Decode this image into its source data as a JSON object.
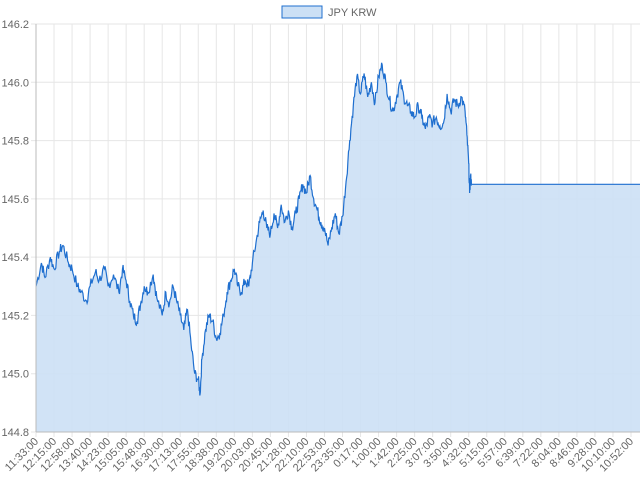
{
  "chart_data": {
    "type": "area",
    "title": "",
    "xlabel": "",
    "ylabel": "",
    "legend_position": "top",
    "grid": true,
    "ylim": [
      144.8,
      146.2
    ],
    "y_ticks": [
      "144.8",
      "145.0",
      "145.2",
      "145.4",
      "145.6",
      "145.8",
      "146.0",
      "146.2"
    ],
    "x_ticks": [
      "11:33:00",
      "12:15:00",
      "12:58:00",
      "13:40:00",
      "14:23:00",
      "15:05:00",
      "15:48:00",
      "16:30:00",
      "17:13:00",
      "17:55:00",
      "18:38:00",
      "19:20:00",
      "20:03:00",
      "20:45:00",
      "21:28:00",
      "22:10:00",
      "22:53:00",
      "23:35:00",
      "0:17:00",
      "1:00:00",
      "1:42:00",
      "2:25:00",
      "3:07:00",
      "3:50:00",
      "4:32:00",
      "5:15:00",
      "5:57:00",
      "6:39:00",
      "7:22:00",
      "8:04:00",
      "8:46:00",
      "9:28:00",
      "10:10:00",
      "10:52:00"
    ],
    "series": [
      {
        "name": "JPY KRW",
        "color": "#1f6fcf",
        "fill": "#cce0f5",
        "points": [
          [
            0,
            145.3
          ],
          [
            0.3,
            145.38
          ],
          [
            0.5,
            145.33
          ],
          [
            0.8,
            145.4
          ],
          [
            1.0,
            145.36
          ],
          [
            1.3,
            145.42
          ],
          [
            1.5,
            145.44
          ],
          [
            1.8,
            145.38
          ],
          [
            2.0,
            145.36
          ],
          [
            2.3,
            145.3
          ],
          [
            2.5,
            145.28
          ],
          [
            2.8,
            145.25
          ],
          [
            3.0,
            145.3
          ],
          [
            3.3,
            145.35
          ],
          [
            3.5,
            145.32
          ],
          [
            3.8,
            145.36
          ],
          [
            4.0,
            145.3
          ],
          [
            4.3,
            145.34
          ],
          [
            4.6,
            145.28
          ],
          [
            4.8,
            145.36
          ],
          [
            5.0,
            145.32
          ],
          [
            5.2,
            145.25
          ],
          [
            5.4,
            145.2
          ],
          [
            5.6,
            145.18
          ],
          [
            5.8,
            145.24
          ],
          [
            6.0,
            145.3
          ],
          [
            6.2,
            145.28
          ],
          [
            6.5,
            145.34
          ],
          [
            6.7,
            145.26
          ],
          [
            7.0,
            145.2
          ],
          [
            7.2,
            145.28
          ],
          [
            7.4,
            145.24
          ],
          [
            7.6,
            145.3
          ],
          [
            7.8,
            145.25
          ],
          [
            8.0,
            145.2
          ],
          [
            8.2,
            145.15
          ],
          [
            8.4,
            145.22
          ],
          [
            8.6,
            145.1
          ],
          [
            8.8,
            145.0
          ],
          [
            9.0,
            144.98
          ],
          [
            9.1,
            144.93
          ],
          [
            9.2,
            145.05
          ],
          [
            9.4,
            145.15
          ],
          [
            9.6,
            145.2
          ],
          [
            9.8,
            145.18
          ],
          [
            10.0,
            145.12
          ],
          [
            10.2,
            145.14
          ],
          [
            10.4,
            145.2
          ],
          [
            10.6,
            145.28
          ],
          [
            10.8,
            145.32
          ],
          [
            11.0,
            145.36
          ],
          [
            11.2,
            145.3
          ],
          [
            11.4,
            145.28
          ],
          [
            11.6,
            145.32
          ],
          [
            11.8,
            145.3
          ],
          [
            12.0,
            145.38
          ],
          [
            12.2,
            145.45
          ],
          [
            12.4,
            145.52
          ],
          [
            12.6,
            145.56
          ],
          [
            12.8,
            145.5
          ],
          [
            13.0,
            145.48
          ],
          [
            13.2,
            145.55
          ],
          [
            13.4,
            145.5
          ],
          [
            13.6,
            145.58
          ],
          [
            13.8,
            145.52
          ],
          [
            14.0,
            145.56
          ],
          [
            14.2,
            145.5
          ],
          [
            14.4,
            145.55
          ],
          [
            14.6,
            145.6
          ],
          [
            14.8,
            145.65
          ],
          [
            15.0,
            145.62
          ],
          [
            15.2,
            145.68
          ],
          [
            15.4,
            145.6
          ],
          [
            15.6,
            145.56
          ],
          [
            15.8,
            145.52
          ],
          [
            16.0,
            145.5
          ],
          [
            16.2,
            145.44
          ],
          [
            16.4,
            145.5
          ],
          [
            16.6,
            145.55
          ],
          [
            16.8,
            145.48
          ],
          [
            17.0,
            145.54
          ],
          [
            17.2,
            145.66
          ],
          [
            17.4,
            145.8
          ],
          [
            17.6,
            145.92
          ],
          [
            17.8,
            146.02
          ],
          [
            18.0,
            145.96
          ],
          [
            18.2,
            146.03
          ],
          [
            18.4,
            145.95
          ],
          [
            18.6,
            146.0
          ],
          [
            18.8,
            145.93
          ],
          [
            19.0,
            146.02
          ],
          [
            19.2,
            146.06
          ],
          [
            19.4,
            146.0
          ],
          [
            19.6,
            145.94
          ],
          [
            19.8,
            145.9
          ],
          [
            20.0,
            145.95
          ],
          [
            20.2,
            146.0
          ],
          [
            20.4,
            145.95
          ],
          [
            20.6,
            145.92
          ],
          [
            20.8,
            145.9
          ],
          [
            21.0,
            145.88
          ],
          [
            21.2,
            145.92
          ],
          [
            21.4,
            145.88
          ],
          [
            21.6,
            145.84
          ],
          [
            21.8,
            145.88
          ],
          [
            22.0,
            145.86
          ],
          [
            22.2,
            145.88
          ],
          [
            22.4,
            145.85
          ],
          [
            22.6,
            145.86
          ],
          [
            22.8,
            145.96
          ],
          [
            23.0,
            145.9
          ],
          [
            23.2,
            145.94
          ],
          [
            23.4,
            145.92
          ],
          [
            23.6,
            145.95
          ],
          [
            23.8,
            145.9
          ],
          [
            23.9,
            145.82
          ],
          [
            24.0,
            145.72
          ],
          [
            24.05,
            145.62
          ],
          [
            24.1,
            145.68
          ],
          [
            24.15,
            145.65
          ],
          [
            33.5,
            145.65
          ]
        ]
      }
    ]
  }
}
